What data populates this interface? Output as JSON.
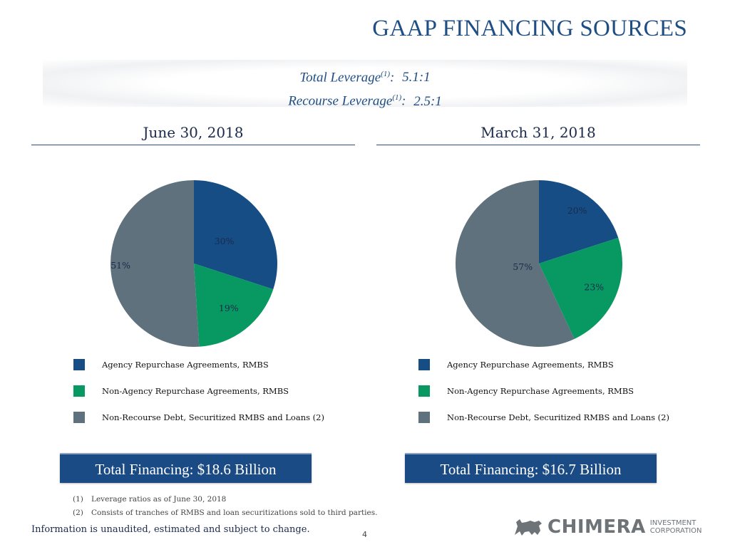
{
  "title": "GAAP FINANCING SOURCES",
  "leverage": {
    "total_label": "Total Leverage",
    "total_sup": "(1)",
    "total_value": "5.1:1",
    "recourse_label": "Recourse Leverage",
    "recourse_sup": "(1)",
    "recourse_value": "2.5:1"
  },
  "colors": {
    "agency": "#164d85",
    "non_agency": "#079961",
    "non_recourse": "#5f717d"
  },
  "chart_data": [
    {
      "type": "pie",
      "title": "June 30, 2018",
      "categories": [
        "Agency Repurchase Agreements, RMBS",
        "Non-Agency Repurchase Agreements, RMBS",
        "Non-Recourse Debt, Securitized RMBS and Loans (2)"
      ],
      "values": [
        30,
        19,
        51
      ],
      "labels": [
        "30%",
        "19%",
        "51%"
      ],
      "colors": [
        "#164d85",
        "#079961",
        "#5f717d"
      ],
      "total": "Total Financing: $18.6 Billion"
    },
    {
      "type": "pie",
      "title": "March 31, 2018",
      "categories": [
        "Agency Repurchase Agreements, RMBS",
        "Non-Agency Repurchase Agreements, RMBS",
        "Non-Recourse Debt, Securitized RMBS and Loans (2)"
      ],
      "values": [
        20,
        23,
        57
      ],
      "labels": [
        "20%",
        "23%",
        "57%"
      ],
      "colors": [
        "#164d85",
        "#079961",
        "#5f717d"
      ],
      "total": "Total Financing: $16.7 Billion"
    }
  ],
  "footnotes": [
    {
      "num": "(1)",
      "text": "Leverage ratios as of June 30, 2018"
    },
    {
      "num": "(2)",
      "text": "Consists of tranches of RMBS and loan securitizations sold to third parties."
    }
  ],
  "disclaimer": "Information is unaudited, estimated and subject to change.",
  "page_number": "4",
  "logo": {
    "word": "CHIMERA",
    "line1": "INVESTMENT",
    "line2": "CORPORATION",
    "icon": "chimera-creature-icon"
  }
}
